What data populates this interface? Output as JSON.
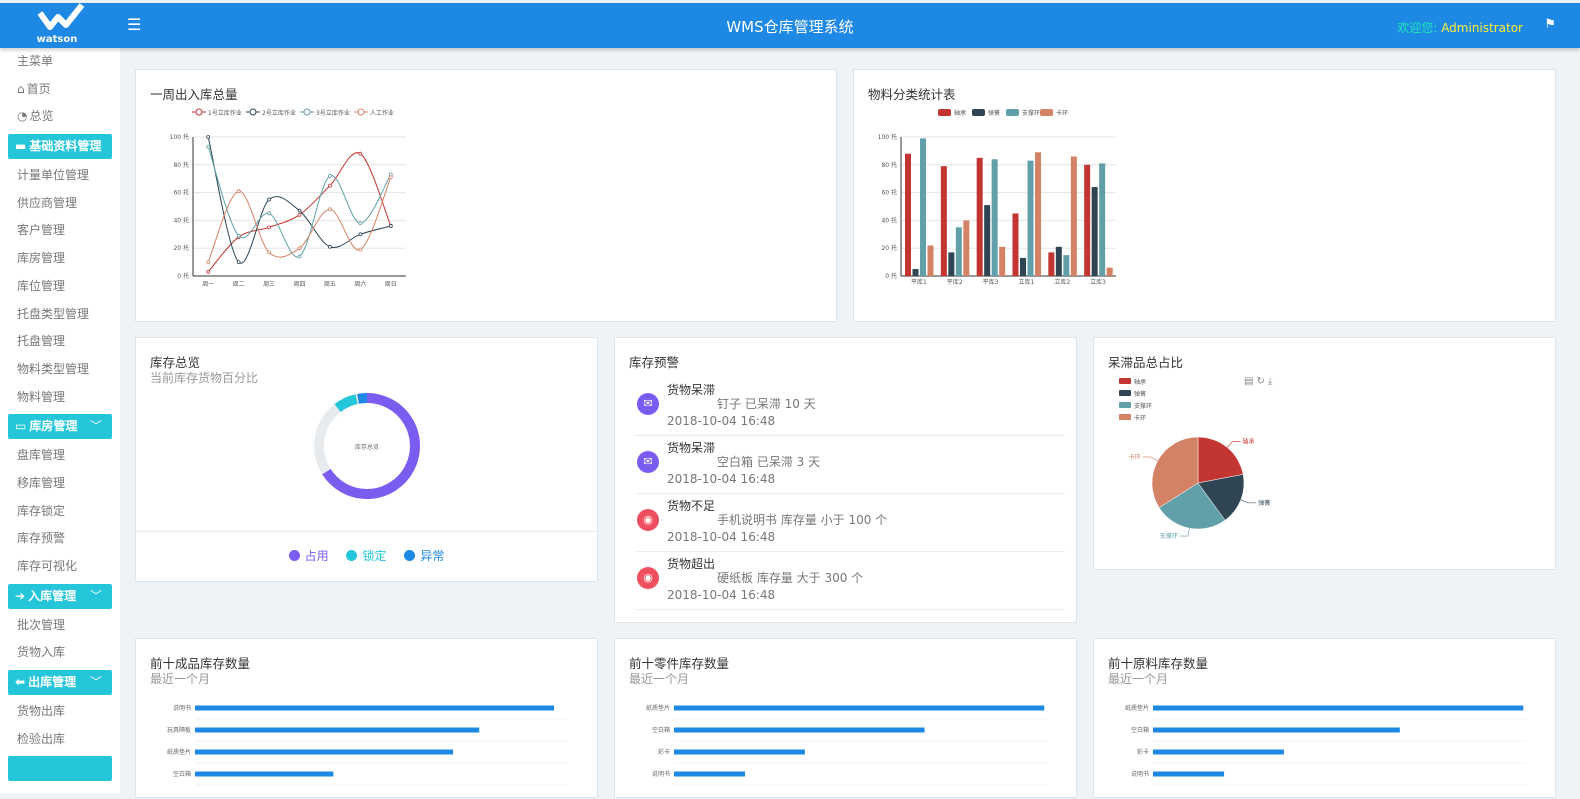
{
  "header": {
    "logo_text": "watson",
    "title": "WMS仓库管理系统",
    "welcome_label": "欢迎您:",
    "username": "Administrator",
    "menu_icon": "hamburger-icon",
    "flag_icon": "flag-icon",
    "color": "#1e88e5"
  },
  "sidebar": {
    "items": [
      {
        "type": "item",
        "label": "主菜单"
      },
      {
        "type": "item",
        "label": "首页",
        "icon": "⌂"
      },
      {
        "type": "item",
        "label": "总览",
        "icon": "◔"
      },
      {
        "type": "group",
        "label": "基础资料管理",
        "icon": "▬",
        "chevron": ""
      },
      {
        "type": "item",
        "label": "计量单位管理"
      },
      {
        "type": "item",
        "label": "供应商管理"
      },
      {
        "type": "item",
        "label": "客户管理"
      },
      {
        "type": "item",
        "label": "库房管理"
      },
      {
        "type": "item",
        "label": "库位管理"
      },
      {
        "type": "item",
        "label": "托盘类型管理"
      },
      {
        "type": "item",
        "label": "托盘管理"
      },
      {
        "type": "item",
        "label": "物料类型管理"
      },
      {
        "type": "item",
        "label": "物料管理"
      },
      {
        "type": "group",
        "label": "库房管理",
        "icon": "▭",
        "chevron": "﹀"
      },
      {
        "type": "item",
        "label": "盘库管理"
      },
      {
        "type": "item",
        "label": "移库管理"
      },
      {
        "type": "item",
        "label": "库存锁定"
      },
      {
        "type": "item",
        "label": "库存预警"
      },
      {
        "type": "item",
        "label": "库存可视化"
      },
      {
        "type": "group",
        "label": "入库管理",
        "icon": "➔",
        "chevron": "﹀"
      },
      {
        "type": "item",
        "label": "批次管理"
      },
      {
        "type": "item",
        "label": "货物入库"
      },
      {
        "type": "group",
        "label": "出库管理",
        "icon": "⬅",
        "chevron": "﹀"
      },
      {
        "type": "item",
        "label": "货物出库"
      },
      {
        "type": "item",
        "label": "检验出库"
      },
      {
        "type": "group",
        "label": "",
        "icon": "",
        "chevron": ""
      }
    ]
  },
  "weekly": {
    "title": "一周出入库总量"
  },
  "material": {
    "title": "物料分类统计表"
  },
  "overview": {
    "title": "库存总览",
    "subtitle": "当前库存货物百分比",
    "center": "库存总览",
    "legend": [
      {
        "label": "占用",
        "color": "#7b5cf0",
        "value": 66
      },
      {
        "label": "锁定",
        "color": "#26c6da",
        "value": 7
      },
      {
        "label": "异常",
        "color": "#1e88e5",
        "value": 3
      }
    ]
  },
  "warning": {
    "title": "库存预警",
    "items": [
      {
        "heading": "货物呆滞",
        "detail": "钉子 已呆滞 10 天",
        "time": "2018-10-04 16:48",
        "icon": "mail-icon",
        "color": "#7b5cf0"
      },
      {
        "heading": "货物呆滞",
        "detail": "空白箱 已呆滞 3 天",
        "time": "2018-10-04 16:48",
        "icon": "mail-icon",
        "color": "#7b5cf0"
      },
      {
        "heading": "货物不足",
        "detail": "手机说明书 库存量 小于 100 个",
        "time": "2018-10-04 16:48",
        "icon": "globe-icon",
        "color": "#ef5060"
      },
      {
        "heading": "货物超出",
        "detail": "硬纸板 库存量 大于 300 个",
        "time": "2018-10-04 16:48",
        "icon": "globe-icon",
        "color": "#ef5060"
      }
    ]
  },
  "stagnant": {
    "title": "呆滞品总占比",
    "tools": [
      "data-view-icon",
      "refresh-icon",
      "download-icon"
    ]
  },
  "top_products": {
    "title": "前十成品库存数量",
    "subtitle": "最近一个月"
  },
  "top_parts": {
    "title": "前十零件库存数量",
    "subtitle": "最近一个月"
  },
  "top_raw": {
    "title": "前十原料库存数量",
    "subtitle": "最近一个月"
  },
  "chart_data": [
    {
      "id": "weekly",
      "type": "line",
      "categories": [
        "周一",
        "周二",
        "周三",
        "周四",
        "周五",
        "周六",
        "周日"
      ],
      "ylim": [
        0,
        100
      ],
      "yticks": [
        "0 托",
        "20 托",
        "40 托",
        "60 托",
        "80 托",
        "100 托"
      ],
      "grid": true,
      "legend": "top",
      "series": [
        {
          "name": "1号立库作业",
          "color": "#c23531",
          "values": [
            3,
            28,
            35,
            44,
            65,
            88,
            36
          ]
        },
        {
          "name": "2号立库作业",
          "color": "#2f4554",
          "values": [
            100,
            10,
            55,
            47,
            21,
            30,
            36
          ]
        },
        {
          "name": "3号立库作业",
          "color": "#61a0a8",
          "values": [
            93,
            29,
            45,
            14,
            72,
            38,
            73
          ]
        },
        {
          "name": "人工作业",
          "color": "#d48265",
          "values": [
            10,
            61,
            17,
            20,
            48,
            19,
            71
          ]
        }
      ]
    },
    {
      "id": "material",
      "type": "bar",
      "categories": [
        "平库1",
        "平库2",
        "平库3",
        "立库1",
        "立库2",
        "立库3"
      ],
      "ylim": [
        0,
        100
      ],
      "yticks": [
        "0 托",
        "20 托",
        "40 托",
        "60 托",
        "80 托",
        "100 托"
      ],
      "grid": true,
      "legend": "top",
      "series": [
        {
          "name": "轴承",
          "color": "#c23531",
          "values": [
            88,
            79,
            85,
            45,
            17,
            80
          ]
        },
        {
          "name": "弹簧",
          "color": "#2f4554",
          "values": [
            5,
            17,
            51,
            13,
            21,
            64
          ]
        },
        {
          "name": "支撑环",
          "color": "#61a0a8",
          "values": [
            99,
            35,
            84,
            83,
            15,
            81
          ]
        },
        {
          "name": "卡环",
          "color": "#d48265",
          "values": [
            22,
            40,
            21,
            89,
            86,
            6
          ]
        }
      ]
    },
    {
      "id": "stagnant",
      "type": "pie",
      "legend": "top-left",
      "slices": [
        {
          "name": "轴承",
          "color": "#c23531",
          "value": 22
        },
        {
          "name": "弹簧",
          "color": "#2f4554",
          "value": 18
        },
        {
          "name": "支撑环",
          "color": "#61a0a8",
          "value": 26
        },
        {
          "name": "卡环",
          "color": "#d48265",
          "value": 34
        }
      ]
    },
    {
      "id": "top_products",
      "type": "bar",
      "orientation": "horizontal",
      "categories": [
        "说明书",
        "玩具隔板",
        "纸质垫片",
        "空白箱"
      ],
      "values": [
        96,
        76,
        69,
        37
      ],
      "color": "#1e88e5"
    },
    {
      "id": "top_parts",
      "type": "bar",
      "orientation": "horizontal",
      "categories": [
        "纸质垫片",
        "空白箱",
        "彩卡",
        "说明书"
      ],
      "values": [
        99,
        67,
        35,
        19
      ],
      "color": "#1e88e5"
    },
    {
      "id": "top_raw",
      "type": "bar",
      "orientation": "horizontal",
      "categories": [
        "纸质垫片",
        "空白箱",
        "彩卡",
        "说明书"
      ],
      "values": [
        99,
        66,
        35,
        19
      ],
      "color": "#1e88e5"
    }
  ]
}
